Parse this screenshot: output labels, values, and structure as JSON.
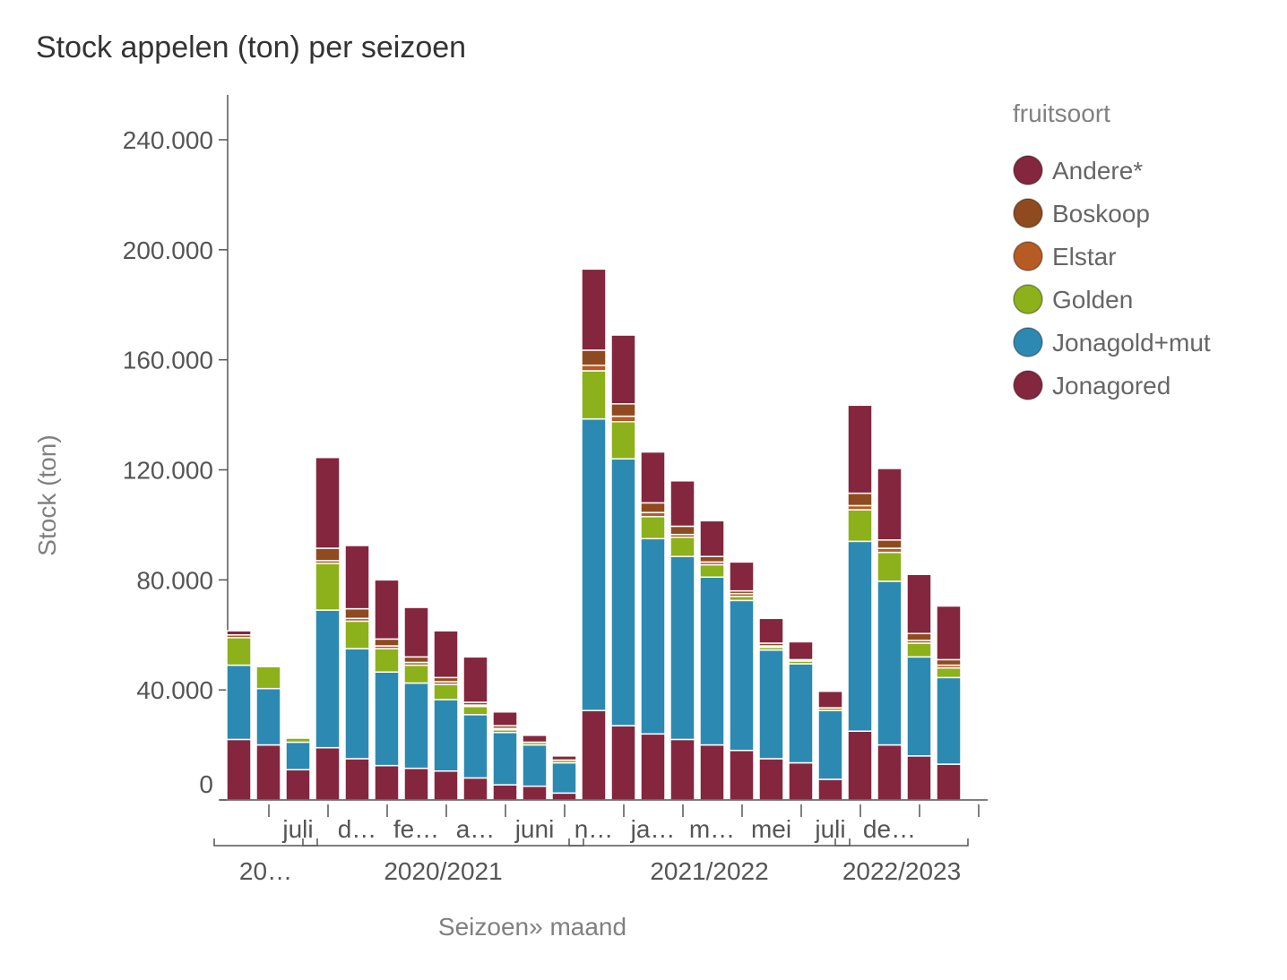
{
  "chart_data": {
    "type": "bar",
    "stacked": true,
    "title": "Stock appelen (ton) per seizoen",
    "ylabel": "Stock (ton)",
    "xlabel": "Seizoen» maand",
    "ylim": [
      0,
      250000
    ],
    "yticks": [
      0,
      40000,
      80000,
      120000,
      160000,
      200000,
      240000
    ],
    "ytick_labels": [
      "0",
      "40.000",
      "80.000",
      "120.000",
      "160.000",
      "200.000",
      "240.000"
    ],
    "legend_title": "fruitsoort",
    "legend": [
      {
        "name": "Andere*",
        "color": "#84263E"
      },
      {
        "name": "Boskoop",
        "color": "#8F4B1F"
      },
      {
        "name": "Elstar",
        "color": "#B65B24"
      },
      {
        "name": "Golden",
        "color": "#8CB11A"
      },
      {
        "name": "Jonagold+mut",
        "color": "#2C89B2"
      },
      {
        "name": "Jonagored",
        "color": "#84263E"
      }
    ],
    "stack_order": [
      "Jonagored",
      "Jonagold+mut",
      "Golden",
      "Elstar",
      "Boskoop",
      "Andere*"
    ],
    "bar_stacks": [
      {
        "Jonagored": 22000,
        "Jonagold+mut": 27000,
        "Golden": 10000,
        "Elstar": 1000,
        "Boskoop": 0,
        "Andere*": 1500
      },
      {
        "Jonagored": 20000,
        "Jonagold+mut": 20500,
        "Golden": 8000,
        "Elstar": 500,
        "Boskoop": 0,
        "Andere*": 500
      },
      {
        "Jonagored": 11000,
        "Jonagold+mut": 10000,
        "Golden": 1500,
        "Elstar": 500,
        "Boskoop": 0,
        "Andere*": 500
      },
      {
        "Jonagored": 19000,
        "Jonagold+mut": 50000,
        "Golden": 17000,
        "Elstar": 1000,
        "Boskoop": 4500,
        "Andere*": 33000
      },
      {
        "Jonagored": 15000,
        "Jonagold+mut": 40000,
        "Golden": 10000,
        "Elstar": 1000,
        "Boskoop": 3500,
        "Andere*": 23000
      },
      {
        "Jonagored": 12500,
        "Jonagold+mut": 34000,
        "Golden": 8500,
        "Elstar": 1000,
        "Boskoop": 2500,
        "Andere*": 21500
      },
      {
        "Jonagored": 11500,
        "Jonagold+mut": 31000,
        "Golden": 6500,
        "Elstar": 1000,
        "Boskoop": 2000,
        "Andere*": 18000
      },
      {
        "Jonagored": 10500,
        "Jonagold+mut": 26000,
        "Golden": 5500,
        "Elstar": 1000,
        "Boskoop": 1500,
        "Andere*": 17000
      },
      {
        "Jonagored": 8000,
        "Jonagold+mut": 23000,
        "Golden": 3000,
        "Elstar": 500,
        "Boskoop": 1000,
        "Andere*": 16500
      },
      {
        "Jonagored": 5500,
        "Jonagold+mut": 19000,
        "Golden": 1000,
        "Elstar": 500,
        "Boskoop": 1000,
        "Andere*": 5000
      },
      {
        "Jonagored": 5000,
        "Jonagold+mut": 15000,
        "Golden": 1000,
        "Elstar": 0,
        "Boskoop": 0,
        "Andere*": 2500
      },
      {
        "Jonagored": 2500,
        "Jonagold+mut": 11000,
        "Golden": 1000,
        "Elstar": 0,
        "Boskoop": 0,
        "Andere*": 1500
      },
      {
        "Jonagored": 32500,
        "Jonagold+mut": 106000,
        "Golden": 17500,
        "Elstar": 2000,
        "Boskoop": 5500,
        "Andere*": 29500
      },
      {
        "Jonagored": 27000,
        "Jonagold+mut": 97000,
        "Golden": 13500,
        "Elstar": 2000,
        "Boskoop": 4500,
        "Andere*": 25000
      },
      {
        "Jonagored": 24000,
        "Jonagold+mut": 71000,
        "Golden": 8000,
        "Elstar": 1500,
        "Boskoop": 3500,
        "Andere*": 18500
      },
      {
        "Jonagored": 22000,
        "Jonagold+mut": 66500,
        "Golden": 7000,
        "Elstar": 1000,
        "Boskoop": 3000,
        "Andere*": 16500
      },
      {
        "Jonagored": 20000,
        "Jonagold+mut": 61000,
        "Golden": 4500,
        "Elstar": 1000,
        "Boskoop": 2000,
        "Andere*": 13000
      },
      {
        "Jonagored": 18000,
        "Jonagold+mut": 54500,
        "Golden": 1500,
        "Elstar": 1000,
        "Boskoop": 1000,
        "Andere*": 10500
      },
      {
        "Jonagored": 15000,
        "Jonagold+mut": 39500,
        "Golden": 1000,
        "Elstar": 500,
        "Boskoop": 1000,
        "Andere*": 9000
      },
      {
        "Jonagored": 13500,
        "Jonagold+mut": 36000,
        "Golden": 1000,
        "Elstar": 500,
        "Boskoop": 0,
        "Andere*": 6500
      },
      {
        "Jonagored": 7500,
        "Jonagold+mut": 25000,
        "Golden": 1000,
        "Elstar": 0,
        "Boskoop": 0,
        "Andere*": 6000
      },
      {
        "Jonagored": 25000,
        "Jonagold+mut": 69000,
        "Golden": 11500,
        "Elstar": 1500,
        "Boskoop": 4500,
        "Andere*": 32000
      },
      {
        "Jonagored": 20000,
        "Jonagold+mut": 59500,
        "Golden": 10500,
        "Elstar": 1500,
        "Boskoop": 3000,
        "Andere*": 26000
      },
      {
        "Jonagored": 16000,
        "Jonagold+mut": 36000,
        "Golden": 5000,
        "Elstar": 1000,
        "Boskoop": 2500,
        "Andere*": 21500
      },
      {
        "Jonagored": 13000,
        "Jonagold+mut": 31500,
        "Golden": 3500,
        "Elstar": 1000,
        "Boskoop": 2000,
        "Andere*": 19500
      }
    ],
    "month_labels": [
      {
        "label": "juli",
        "bar": 2
      },
      {
        "label": "d…",
        "bar": 4
      },
      {
        "label": "fe…",
        "bar": 6
      },
      {
        "label": "a…",
        "bar": 8
      },
      {
        "label": "juni",
        "bar": 10
      },
      {
        "label": "n…",
        "bar": 12
      },
      {
        "label": "ja…",
        "bar": 14
      },
      {
        "label": "m…",
        "bar": 16
      },
      {
        "label": "mei",
        "bar": 18
      },
      {
        "label": "juli",
        "bar": 20
      },
      {
        "label": "de…",
        "bar": 22
      }
    ],
    "season_groups": [
      {
        "label": "20…",
        "from_bar": 0,
        "to_bar": 2
      },
      {
        "label": "2020/2021",
        "from_bar": 3,
        "to_bar": 11
      },
      {
        "label": "2021/2022",
        "from_bar": 12,
        "to_bar": 20
      },
      {
        "label": "2022/2023",
        "from_bar": 21,
        "to_bar": 24
      }
    ]
  }
}
